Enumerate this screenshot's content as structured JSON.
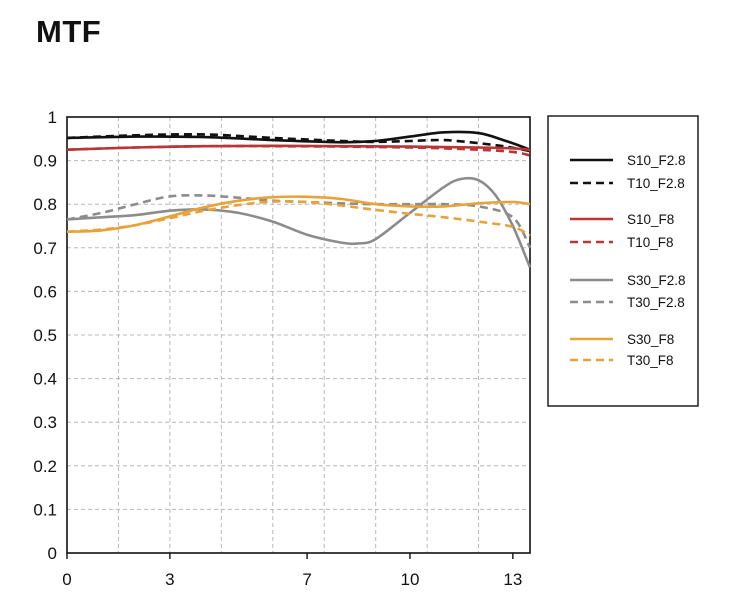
{
  "chart_data": {
    "type": "line",
    "title": "MTF",
    "xlabel": "",
    "ylabel": "",
    "xlim": [
      0,
      13.5
    ],
    "ylim": [
      0,
      1
    ],
    "xticks": [
      0,
      3,
      7,
      10,
      13
    ],
    "yticks": [
      "0",
      "0.1",
      "0.2",
      "0.3",
      "0.4",
      "0.5",
      "0.6",
      "0.7",
      "0.8",
      "0.9",
      "1"
    ],
    "grid": true,
    "legend_position": "right",
    "series": [
      {
        "name": "S10_F2.8",
        "color": "#111111",
        "dash": false,
        "x": [
          0,
          2,
          4,
          6,
          8,
          9,
          10,
          11,
          12,
          12.8,
          13.5
        ],
        "y": [
          0.952,
          0.955,
          0.954,
          0.947,
          0.942,
          0.945,
          0.955,
          0.965,
          0.963,
          0.945,
          0.925
        ]
      },
      {
        "name": "T10_F2.8",
        "color": "#111111",
        "dash": true,
        "x": [
          0,
          2,
          4,
          6,
          8,
          9,
          10,
          11,
          12,
          12.8,
          13.5
        ],
        "y": [
          0.952,
          0.958,
          0.96,
          0.952,
          0.945,
          0.943,
          0.945,
          0.947,
          0.94,
          0.932,
          0.922
        ]
      },
      {
        "name": "S10_F8",
        "color": "#b93636",
        "dash": false,
        "x": [
          0,
          2,
          4,
          6,
          8,
          10,
          12,
          13,
          13.5
        ],
        "y": [
          0.925,
          0.93,
          0.933,
          0.934,
          0.933,
          0.932,
          0.93,
          0.928,
          0.925
        ]
      },
      {
        "name": "T10_F8",
        "color": "#b93636",
        "dash": true,
        "x": [
          0,
          2,
          4,
          6,
          8,
          10,
          11,
          12,
          13,
          13.5
        ],
        "y": [
          0.925,
          0.93,
          0.933,
          0.933,
          0.932,
          0.93,
          0.928,
          0.925,
          0.92,
          0.912
        ]
      },
      {
        "name": "S30_F2.8",
        "color": "#8c8c8c",
        "dash": false,
        "x": [
          0,
          1,
          2,
          3,
          4,
          5,
          6,
          7,
          8,
          8.5,
          9,
          10,
          11,
          11.5,
          12,
          12.5,
          13,
          13.5
        ],
        "y": [
          0.765,
          0.77,
          0.775,
          0.785,
          0.788,
          0.78,
          0.76,
          0.73,
          0.712,
          0.71,
          0.72,
          0.78,
          0.84,
          0.858,
          0.855,
          0.82,
          0.75,
          0.655
        ]
      },
      {
        "name": "T30_F2.8",
        "color": "#8c8c8c",
        "dash": true,
        "x": [
          0,
          1,
          2,
          3,
          4,
          5,
          6,
          7,
          8,
          9,
          10,
          11,
          12,
          13,
          13.5
        ],
        "y": [
          0.765,
          0.78,
          0.8,
          0.818,
          0.82,
          0.815,
          0.808,
          0.805,
          0.802,
          0.8,
          0.8,
          0.8,
          0.795,
          0.77,
          0.7
        ]
      },
      {
        "name": "S30_F8",
        "color": "#e8a23a",
        "dash": false,
        "x": [
          0,
          1,
          2,
          3,
          4,
          5,
          6,
          7,
          8,
          9,
          10,
          11,
          12,
          13,
          13.5
        ],
        "y": [
          0.737,
          0.74,
          0.752,
          0.772,
          0.793,
          0.808,
          0.816,
          0.817,
          0.812,
          0.8,
          0.795,
          0.795,
          0.802,
          0.805,
          0.8
        ]
      },
      {
        "name": "T30_F8",
        "color": "#e8a23a",
        "dash": true,
        "x": [
          0,
          1,
          2,
          3,
          4,
          5,
          6,
          7,
          8,
          9,
          10,
          11,
          12,
          13,
          13.5
        ],
        "y": [
          0.737,
          0.742,
          0.752,
          0.768,
          0.785,
          0.798,
          0.806,
          0.805,
          0.797,
          0.787,
          0.778,
          0.77,
          0.76,
          0.748,
          0.728
        ]
      }
    ]
  }
}
